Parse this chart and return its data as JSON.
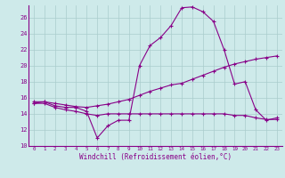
{
  "title": "",
  "xlabel": "Windchill (Refroidissement éolien,°C)",
  "ylabel": "",
  "background_color": "#ceeaea",
  "line_color": "#880088",
  "grid_color": "#aacccc",
  "xlim": [
    -0.5,
    23.5
  ],
  "ylim": [
    10,
    27.5
  ],
  "yticks": [
    10,
    12,
    14,
    16,
    18,
    20,
    22,
    24,
    26
  ],
  "xticks": [
    0,
    1,
    2,
    3,
    4,
    5,
    6,
    7,
    8,
    9,
    10,
    11,
    12,
    13,
    14,
    15,
    16,
    17,
    18,
    19,
    20,
    21,
    22,
    23
  ],
  "series1_x": [
    0,
    1,
    2,
    3,
    4,
    5,
    6,
    7,
    8,
    9,
    10,
    11,
    12,
    13,
    14,
    15,
    16,
    17,
    18,
    19,
    20,
    21,
    22,
    23
  ],
  "series1_y": [
    15.3,
    15.5,
    15.0,
    14.8,
    14.8,
    14.3,
    11.0,
    12.5,
    13.2,
    13.2,
    20.0,
    22.5,
    23.5,
    25.0,
    27.2,
    27.3,
    26.7,
    25.5,
    22.0,
    17.7,
    18.0,
    14.5,
    13.2,
    13.5
  ],
  "series2_x": [
    0,
    1,
    2,
    3,
    4,
    5,
    6,
    7,
    8,
    9,
    10,
    11,
    12,
    13,
    14,
    15,
    16,
    17,
    18,
    19,
    20,
    21,
    22,
    23
  ],
  "series2_y": [
    15.5,
    15.5,
    15.3,
    15.1,
    14.9,
    14.8,
    15.0,
    15.2,
    15.5,
    15.8,
    16.3,
    16.8,
    17.2,
    17.6,
    17.8,
    18.3,
    18.8,
    19.3,
    19.8,
    20.2,
    20.5,
    20.8,
    21.0,
    21.2
  ],
  "series3_x": [
    0,
    1,
    2,
    3,
    4,
    5,
    6,
    7,
    8,
    9,
    10,
    11,
    12,
    13,
    14,
    15,
    16,
    17,
    18,
    19,
    20,
    21,
    22,
    23
  ],
  "series3_y": [
    15.3,
    15.3,
    14.8,
    14.5,
    14.3,
    14.0,
    13.8,
    14.0,
    14.0,
    14.0,
    14.0,
    14.0,
    14.0,
    14.0,
    14.0,
    14.0,
    14.0,
    14.0,
    14.0,
    13.8,
    13.8,
    13.5,
    13.3,
    13.3
  ]
}
